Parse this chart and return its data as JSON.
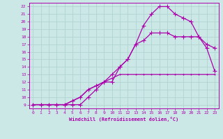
{
  "xlabel": "Windchill (Refroidissement éolien,°C)",
  "background_color": "#cce8e6",
  "grid_color": "#b0d4d2",
  "line_color": "#aa00aa",
  "xlim": [
    -0.5,
    23.5
  ],
  "ylim": [
    8.5,
    22.5
  ],
  "xticks": [
    0,
    1,
    2,
    3,
    4,
    5,
    6,
    7,
    8,
    9,
    10,
    11,
    12,
    13,
    14,
    15,
    16,
    17,
    18,
    19,
    20,
    21,
    22,
    23
  ],
  "yticks": [
    9,
    10,
    11,
    12,
    13,
    14,
    15,
    16,
    17,
    18,
    19,
    20,
    21,
    22
  ],
  "line1_x": [
    0,
    1,
    2,
    3,
    4,
    5,
    6,
    7,
    8,
    9,
    10,
    11,
    12,
    13,
    14,
    15,
    16,
    17,
    18,
    19,
    20,
    21,
    22,
    23
  ],
  "line1_y": [
    9,
    9,
    9,
    9,
    9,
    9.5,
    10,
    11,
    11.5,
    12,
    12.5,
    13,
    13,
    13,
    13,
    13,
    13,
    13,
    13,
    13,
    13,
    13,
    13,
    13
  ],
  "line2_x": [
    0,
    1,
    2,
    3,
    4,
    5,
    6,
    7,
    8,
    9,
    10,
    11,
    12,
    13,
    14,
    15,
    16,
    17,
    18,
    19,
    20,
    21,
    22,
    23
  ],
  "line2_y": [
    9,
    9,
    9,
    9,
    9,
    9.5,
    10,
    11,
    11.5,
    12,
    13,
    14,
    15,
    17,
    17.5,
    18.5,
    18.5,
    18.5,
    18,
    18,
    18,
    18,
    16.5,
    13.5
  ],
  "line3_x": [
    0,
    1,
    2,
    3,
    4,
    5,
    6,
    7,
    8,
    9,
    10,
    11,
    12,
    13,
    14,
    15,
    16,
    17,
    18,
    19,
    20,
    21,
    22,
    23
  ],
  "line3_y": [
    9,
    9,
    9,
    9,
    9,
    9,
    9,
    10,
    11,
    12,
    12,
    14,
    15,
    17,
    19.5,
    21,
    22,
    22,
    21,
    20.5,
    20,
    18,
    17,
    16.5
  ]
}
